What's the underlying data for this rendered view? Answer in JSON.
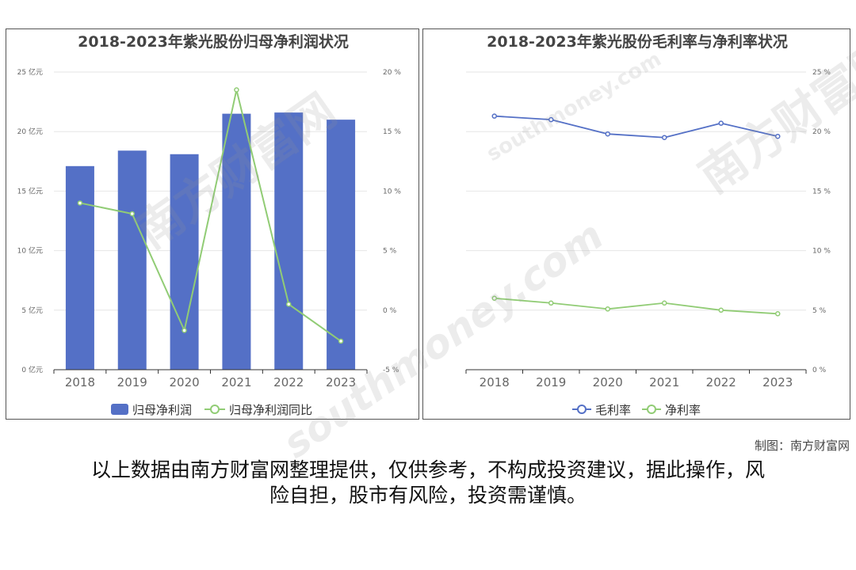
{
  "watermark": "南方财富网",
  "watermark_sub": "southmoney.com",
  "credit": "制图：南方财富网",
  "disclaimer": [
    "以上数据由南方财富网整理提供，仅供参考，不构成投资建议，据此操作，风",
    "险自担，股市有风险，投资需谨慎。"
  ],
  "colors": {
    "bar": "#5470c6",
    "green": "#91cc75",
    "blue": "#5470c6",
    "axis": "#666666",
    "grid": "#e6e6e6"
  },
  "chart_data": [
    {
      "type": "bar",
      "title": "2018-2023年紫光股份归母净利润状况",
      "categories": [
        "2018",
        "2019",
        "2020",
        "2021",
        "2022",
        "2023"
      ],
      "y_left": {
        "ticks": [
          "0 亿元",
          "5 亿元",
          "10 亿元",
          "15 亿元",
          "20 亿元",
          "25 亿元"
        ],
        "range": [
          0,
          25
        ]
      },
      "y_right": {
        "ticks": [
          "-5 %",
          "0 %",
          "5 %",
          "10 %",
          "15 %",
          "20 %"
        ],
        "range": [
          -5,
          20
        ]
      },
      "series": [
        {
          "name": "归母净利润",
          "type": "bar",
          "axis": "left",
          "values": [
            17.1,
            18.4,
            18.1,
            21.5,
            21.6,
            21.0
          ]
        },
        {
          "name": "归母净利润同比",
          "type": "line",
          "axis": "right",
          "values": [
            9.0,
            8.1,
            -1.7,
            18.5,
            0.5,
            -2.6
          ]
        }
      ],
      "legend": "bottom"
    },
    {
      "type": "line",
      "title": "2018-2023年紫光股份毛利率与净利率状况",
      "categories": [
        "2018",
        "2019",
        "2020",
        "2021",
        "2022",
        "2023"
      ],
      "y_right": {
        "ticks": [
          "0 %",
          "5 %",
          "10 %",
          "15 %",
          "20 %",
          "25 %"
        ],
        "range": [
          0,
          25
        ]
      },
      "series": [
        {
          "name": "毛利率",
          "values": [
            21.3,
            21.0,
            19.8,
            19.5,
            20.7,
            19.6
          ]
        },
        {
          "name": "净利率",
          "values": [
            6.0,
            5.6,
            5.1,
            5.6,
            5.0,
            4.7
          ]
        }
      ],
      "legend": "bottom"
    }
  ]
}
